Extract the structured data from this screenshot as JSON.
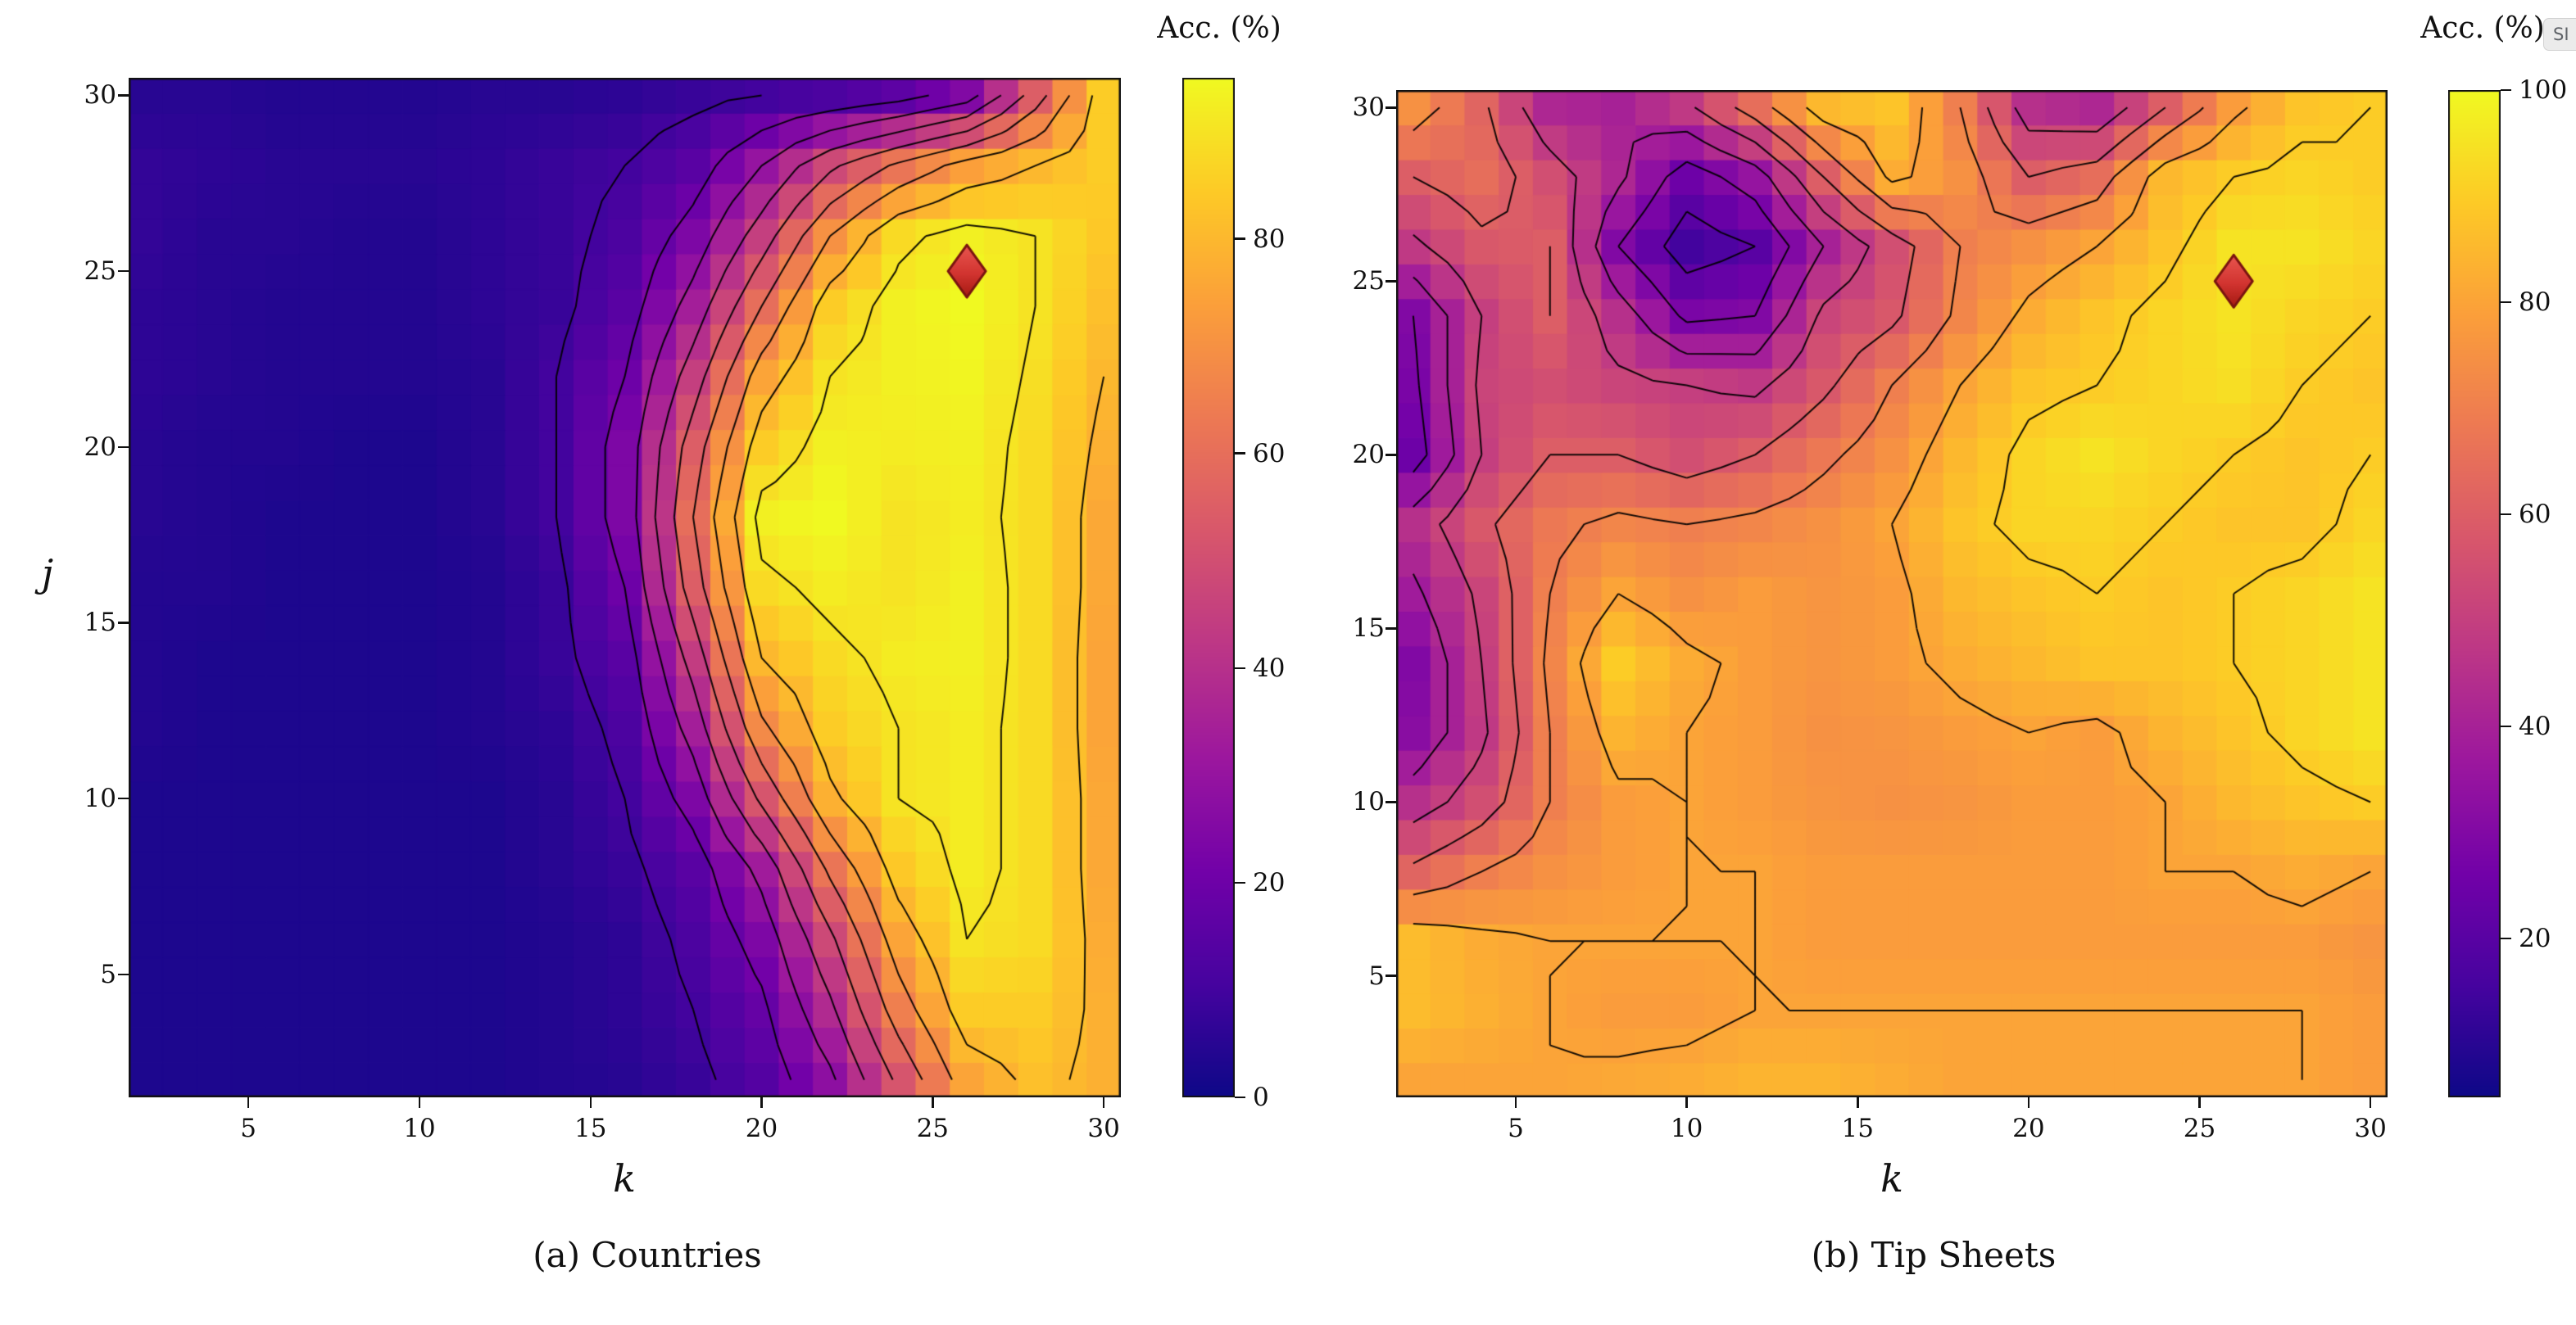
{
  "overlay_badge": {
    "label": "SI"
  },
  "style": {
    "colormap_name": "plasma",
    "colormap_stops": [
      "#0d0887",
      "#46039f",
      "#7201a8",
      "#9c179e",
      "#bd3786",
      "#d8576b",
      "#ed7953",
      "#fb9f3a",
      "#fdca26",
      "#f0f921"
    ],
    "contour_color": "#000000",
    "axis_color": "#111111",
    "marker_fill": "#d23430",
    "marker_fill_dark": "#a51a12",
    "marker_edge": "#7a1410"
  },
  "chart_data": [
    {
      "type": "heatmap",
      "caption": "(a) Countries",
      "xlabel": "k",
      "ylabel": "j",
      "xlim": [
        1.5,
        30.5
      ],
      "ylim": [
        1.5,
        30.5
      ],
      "x_ticks": [
        5,
        10,
        15,
        20,
        25,
        30
      ],
      "y_ticks": [
        5,
        10,
        15,
        20,
        25,
        30
      ],
      "grid_on": false,
      "contour_levels": [
        10,
        20,
        30,
        40,
        50,
        60,
        70,
        80,
        90
      ],
      "marker": {
        "k": 26,
        "j": 25
      },
      "colorbar": {
        "title": "Acc. (%)",
        "ticks": [
          0,
          20,
          40,
          60,
          80
        ],
        "vmin": 0,
        "vmax": 95,
        "position": "right"
      },
      "grid": {
        "k_samples": [
          2,
          4,
          6,
          8,
          10,
          12,
          14,
          16,
          18,
          20,
          22,
          24,
          26,
          28,
          30
        ],
        "j_samples": [
          2,
          4,
          6,
          8,
          10,
          12,
          14,
          16,
          18,
          20,
          22,
          24,
          26,
          28,
          30
        ],
        "values": [
          [
            3,
            3,
            3,
            3,
            3,
            3,
            4,
            5,
            8,
            14,
            28,
            52,
            75,
            82,
            78
          ],
          [
            3,
            3,
            3,
            3,
            3,
            3,
            4,
            6,
            10,
            18,
            38,
            65,
            85,
            85,
            78
          ],
          [
            3,
            3,
            3,
            3,
            3,
            3,
            4,
            6,
            12,
            24,
            48,
            75,
            90,
            88,
            77
          ],
          [
            3,
            3,
            3,
            3,
            3,
            3,
            5,
            8,
            15,
            33,
            62,
            84,
            92,
            88,
            76
          ],
          [
            3,
            3,
            3,
            3,
            3,
            3,
            5,
            10,
            24,
            52,
            78,
            90,
            92,
            88,
            76
          ],
          [
            4,
            3,
            3,
            3,
            3,
            4,
            6,
            12,
            34,
            68,
            85,
            90,
            92,
            88,
            75
          ],
          [
            4,
            3,
            3,
            3,
            3,
            4,
            8,
            15,
            44,
            80,
            88,
            92,
            93,
            88,
            75
          ],
          [
            4,
            4,
            3,
            3,
            3,
            4,
            8,
            20,
            55,
            88,
            92,
            90,
            93,
            88,
            76
          ],
          [
            5,
            4,
            3,
            3,
            3,
            5,
            10,
            24,
            60,
            93,
            95,
            90,
            92,
            88,
            76
          ],
          [
            5,
            4,
            4,
            3,
            3,
            5,
            10,
            24,
            55,
            85,
            93,
            92,
            93,
            88,
            78
          ],
          [
            6,
            5,
            4,
            4,
            4,
            5,
            10,
            20,
            45,
            75,
            90,
            93,
            94,
            89,
            80
          ],
          [
            6,
            5,
            4,
            4,
            4,
            6,
            8,
            15,
            34,
            60,
            85,
            93,
            95,
            90,
            82
          ],
          [
            7,
            5,
            5,
            4,
            4,
            6,
            8,
            12,
            24,
            45,
            70,
            88,
            93,
            90,
            84
          ],
          [
            7,
            6,
            5,
            5,
            5,
            6,
            8,
            10,
            15,
            30,
            48,
            62,
            74,
            80,
            85
          ],
          [
            5,
            5,
            4,
            4,
            4,
            5,
            5,
            6,
            8,
            10,
            12,
            16,
            25,
            55,
            85
          ]
        ]
      }
    },
    {
      "type": "heatmap",
      "caption": "(b) Tip Sheets",
      "xlabel": "k",
      "ylabel": "",
      "xlim": [
        1.5,
        30.5
      ],
      "ylim": [
        1.5,
        30.5
      ],
      "x_ticks": [
        5,
        10,
        15,
        20,
        25,
        30
      ],
      "y_ticks": [
        5,
        10,
        15,
        20,
        25,
        30
      ],
      "grid_on": false,
      "contour_levels": [
        20,
        30,
        40,
        50,
        60,
        70,
        80,
        90
      ],
      "marker": {
        "k": 26,
        "j": 25
      },
      "colorbar": {
        "title": "Acc. (%)",
        "ticks": [
          20,
          40,
          60,
          80,
          100
        ],
        "vmin": 5,
        "vmax": 100,
        "position": "right"
      },
      "grid": {
        "k_samples": [
          2,
          4,
          6,
          8,
          10,
          12,
          14,
          16,
          18,
          20,
          22,
          24,
          26,
          28,
          30
        ],
        "j_samples": [
          2,
          4,
          6,
          8,
          10,
          12,
          14,
          16,
          18,
          20,
          22,
          24,
          26,
          28,
          30
        ],
        "values": [
          [
            80,
            80,
            80,
            81,
            82,
            84,
            84,
            82,
            80,
            80,
            80,
            80,
            80,
            80,
            78
          ],
          [
            86,
            83,
            80,
            78,
            78,
            80,
            80,
            80,
            80,
            80,
            80,
            80,
            80,
            80,
            78
          ],
          [
            86,
            82,
            80,
            80,
            80,
            80,
            78,
            78,
            78,
            78,
            78,
            78,
            78,
            78,
            76
          ],
          [
            62,
            70,
            75,
            78,
            80,
            80,
            78,
            78,
            78,
            78,
            78,
            80,
            80,
            82,
            80
          ],
          [
            45,
            55,
            70,
            78,
            80,
            78,
            76,
            75,
            76,
            78,
            78,
            80,
            85,
            88,
            90
          ],
          [
            32,
            48,
            70,
            84,
            80,
            78,
            75,
            76,
            78,
            80,
            78,
            84,
            88,
            92,
            95
          ],
          [
            30,
            50,
            72,
            90,
            82,
            78,
            76,
            78,
            82,
            85,
            88,
            88,
            90,
            92,
            95
          ],
          [
            38,
            52,
            70,
            80,
            75,
            78,
            76,
            78,
            85,
            88,
            90,
            88,
            90,
            92,
            95
          ],
          [
            45,
            58,
            68,
            72,
            70,
            72,
            75,
            80,
            88,
            92,
            92,
            90,
            88,
            88,
            92
          ],
          [
            25,
            50,
            60,
            60,
            55,
            60,
            68,
            75,
            85,
            92,
            95,
            92,
            90,
            88,
            90
          ],
          [
            28,
            52,
            55,
            52,
            50,
            48,
            58,
            70,
            80,
            88,
            90,
            92,
            94,
            90,
            88
          ],
          [
            30,
            50,
            60,
            45,
            28,
            30,
            52,
            58,
            72,
            82,
            88,
            92,
            95,
            92,
            90
          ],
          [
            48,
            58,
            60,
            30,
            15,
            20,
            40,
            55,
            70,
            75,
            80,
            88,
            95,
            95,
            92
          ],
          [
            60,
            65,
            55,
            42,
            25,
            35,
            60,
            82,
            75,
            60,
            65,
            85,
            90,
            92,
            90
          ],
          [
            75,
            62,
            42,
            40,
            48,
            65,
            85,
            88,
            70,
            45,
            42,
            60,
            78,
            88,
            90
          ]
        ]
      }
    }
  ]
}
